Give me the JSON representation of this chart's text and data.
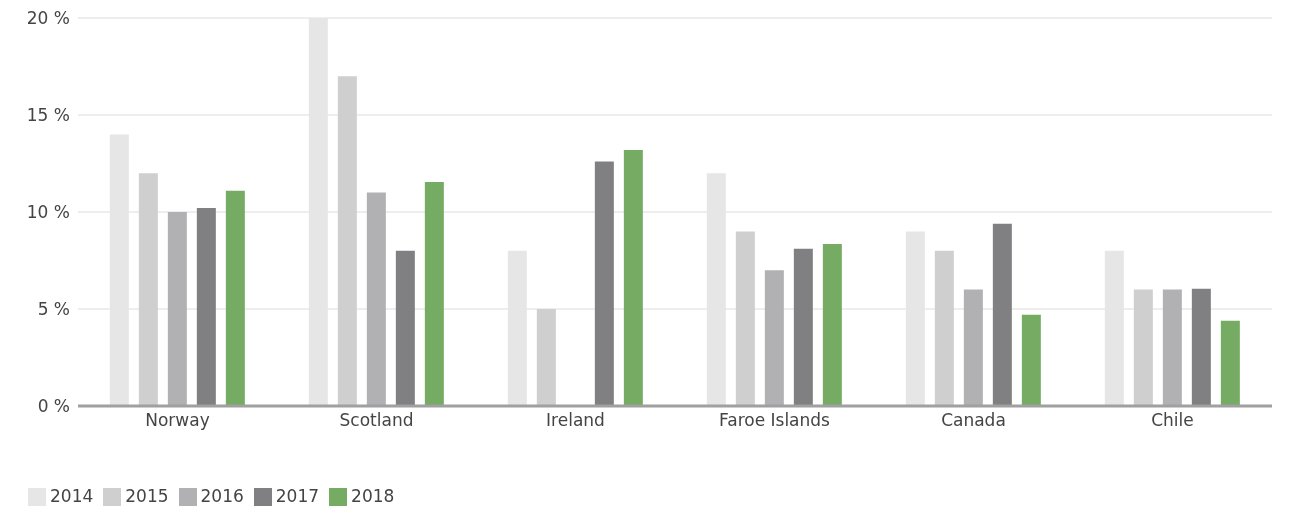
{
  "chart_data": {
    "type": "bar",
    "categories": [
      "Norway",
      "Scotland",
      "Ireland",
      "Faroe Islands",
      "Canada",
      "Chile"
    ],
    "series": [
      {
        "name": "2014",
        "color": "#e6e6e7",
        "values": [
          14,
          20,
          8,
          12,
          9,
          8
        ]
      },
      {
        "name": "2015",
        "color": "#cfcfd0",
        "values": [
          12,
          17,
          5,
          9,
          8,
          6
        ]
      },
      {
        "name": "2016",
        "color": "#b1b1b4",
        "values": [
          10,
          11,
          null,
          7,
          6,
          6
        ]
      },
      {
        "name": "2017",
        "color": "#808083",
        "values": [
          10.2,
          8,
          12.6,
          8.1,
          9.4,
          6.05
        ]
      },
      {
        "name": "2018",
        "color": "#76ab64",
        "values": [
          11.1,
          11.55,
          13.2,
          8.35,
          4.7,
          4.4
        ]
      }
    ],
    "ylim": [
      0,
      20
    ],
    "yticks": [
      {
        "value": 0,
        "label": "0 %"
      },
      {
        "value": 5,
        "label": "5 %"
      },
      {
        "value": 10,
        "label": "10 %"
      },
      {
        "value": 15,
        "label": "15 %"
      },
      {
        "value": 20,
        "label": "20 %"
      }
    ],
    "grid": "y",
    "legend": "bottom left"
  }
}
